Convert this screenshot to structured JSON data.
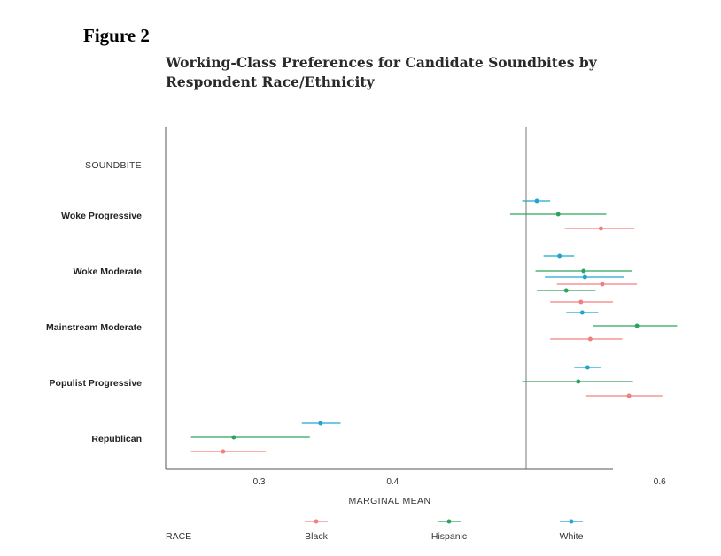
{
  "figure_label": "Figure 2",
  "chart_data": {
    "type": "scatter",
    "title": "Working-Class Preferences for Candidate Soundbites by Respondent Race/Ethnicity",
    "xlabel": "MARGINAL MEAN",
    "ylabel_header": "SOUNDBITE",
    "xlim": [
      0.23,
      0.565
    ],
    "xticks": [
      0.3,
      0.4,
      0.6
    ],
    "xtick_labels": [
      "0.3",
      "0.4",
      "0.6"
    ],
    "reference_line": 0.5,
    "grid": false,
    "legend_title": "RACE",
    "legend_position": "bottom",
    "colors": {
      "Black": "#f08080",
      "Hispanic": "#2ea35c",
      "White": "#1fa6cf"
    },
    "categories": [
      "Woke Progressive",
      "Woke Moderate",
      "Mainstream Moderate",
      "Populist Progressive",
      "Republican"
    ],
    "series": [
      {
        "name": "White",
        "points": [
          {
            "row": 0,
            "offset": -16,
            "x": 0.508,
            "lo": 0.497,
            "hi": 0.518
          },
          {
            "row": 1,
            "offset": -17,
            "x": 0.525,
            "lo": 0.513,
            "hi": 0.536
          },
          {
            "row": 1,
            "offset": 7,
            "x": 0.544,
            "lo": 0.514,
            "hi": 0.573
          },
          {
            "row": 1,
            "offset": 47,
            "x": 0.542,
            "lo": 0.53,
            "hi": 0.554
          },
          {
            "row": 3,
            "offset": -17,
            "x": 0.546,
            "lo": 0.536,
            "hi": 0.556
          },
          {
            "row": 4,
            "offset": -17,
            "x": 0.346,
            "lo": 0.332,
            "hi": 0.361
          }
        ]
      },
      {
        "name": "Hispanic",
        "points": [
          {
            "row": 0,
            "offset": -1,
            "x": 0.524,
            "lo": 0.488,
            "hi": 0.56
          },
          {
            "row": 1,
            "offset": 0,
            "x": 0.543,
            "lo": 0.507,
            "hi": 0.579
          },
          {
            "row": 1,
            "offset": 22,
            "x": 0.53,
            "lo": 0.508,
            "hi": 0.552
          },
          {
            "row": 2,
            "offset": -1,
            "x": 0.583,
            "lo": 0.55,
            "hi": 0.613
          },
          {
            "row": 3,
            "offset": -1,
            "x": 0.539,
            "lo": 0.497,
            "hi": 0.58
          },
          {
            "row": 4,
            "offset": -1,
            "x": 0.281,
            "lo": 0.249,
            "hi": 0.338
          }
        ]
      },
      {
        "name": "Black",
        "points": [
          {
            "row": 0,
            "offset": 15,
            "x": 0.556,
            "lo": 0.529,
            "hi": 0.581
          },
          {
            "row": 1,
            "offset": 15,
            "x": 0.557,
            "lo": 0.523,
            "hi": 0.583
          },
          {
            "row": 1,
            "offset": 35,
            "x": 0.541,
            "lo": 0.518,
            "hi": 0.565
          },
          {
            "row": 2,
            "offset": 14,
            "x": 0.548,
            "lo": 0.518,
            "hi": 0.572
          },
          {
            "row": 3,
            "offset": 15,
            "x": 0.577,
            "lo": 0.545,
            "hi": 0.602
          },
          {
            "row": 4,
            "offset": 15,
            "x": 0.273,
            "lo": 0.249,
            "hi": 0.305
          }
        ]
      }
    ],
    "legend": [
      "Black",
      "Hispanic",
      "White"
    ]
  }
}
